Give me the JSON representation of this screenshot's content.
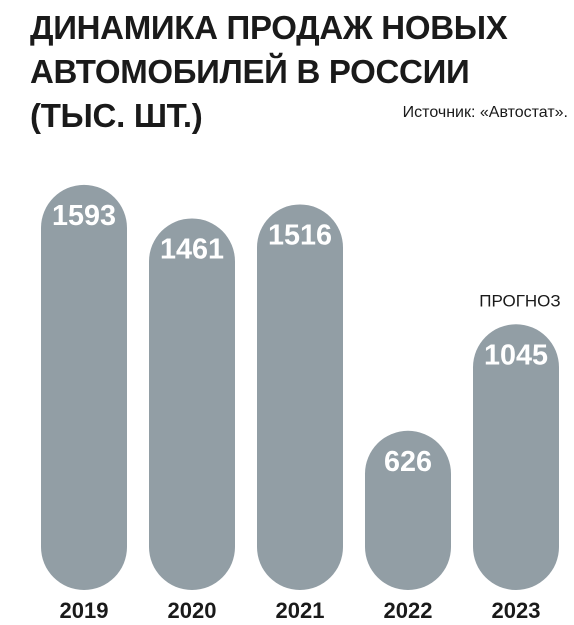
{
  "chart_data": {
    "type": "bar",
    "title_lines": [
      "ДИНАМИКА ПРОДАЖ НОВЫХ",
      "АВТОМОБИЛЕЙ В РОССИИ",
      "(ТЫС. ШТ.)"
    ],
    "source": "Источник: «Автостат».",
    "categories": [
      "2019",
      "2020",
      "2021",
      "2022",
      "2023"
    ],
    "values": [
      1593,
      1461,
      1516,
      626,
      1045
    ],
    "annotations": [
      {
        "category": "2023",
        "text": "ПРОГНОЗ"
      }
    ],
    "bar_color": "#929ea5",
    "value_label_color": "#ffffff",
    "grid": false,
    "legend": "none"
  }
}
